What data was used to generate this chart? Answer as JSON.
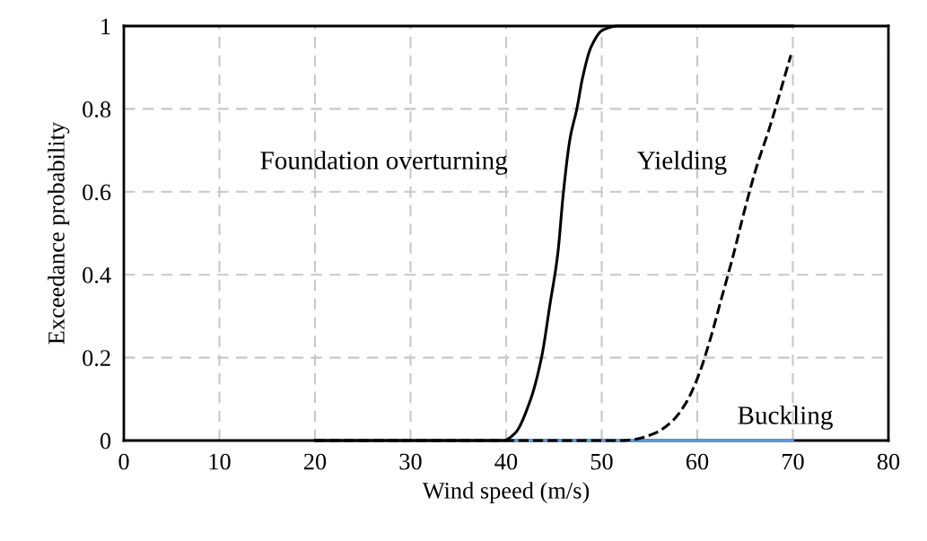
{
  "chart_data": {
    "type": "line",
    "xlabel": "Wind speed (m/s)",
    "ylabel": "Exceedance probability",
    "xlim": [
      0,
      80
    ],
    "xticks": [
      0,
      10,
      20,
      30,
      40,
      50,
      60,
      70,
      80
    ],
    "ylim": [
      0,
      1
    ],
    "yticks": [
      0,
      0.2,
      0.4,
      0.6,
      0.8,
      1
    ],
    "grid": true,
    "legend": false,
    "marker": "none",
    "series": [
      {
        "name": "Buckling",
        "color": "#5b9bd5",
        "line_style": "solid",
        "x": [
          40,
          70
        ],
        "values": [
          0,
          0
        ]
      },
      {
        "name": "Foundation overturning",
        "color": "#000000",
        "line_style": "solid",
        "x": [
          20,
          39.7,
          40.9,
          42.5,
          43.7,
          44.6,
          45.4,
          46.0,
          46.7,
          47.4,
          48.0,
          48.9,
          50.1,
          51.7,
          53,
          70
        ],
        "values": [
          0,
          0,
          0.017,
          0.095,
          0.2,
          0.33,
          0.45,
          0.6,
          0.73,
          0.8,
          0.875,
          0.95,
          0.99,
          1.0,
          1.0,
          1.0
        ]
      },
      {
        "name": "Yielding",
        "color": "#000000",
        "line_style": "dashed",
        "x": [
          20,
          52,
          53.2,
          55.5,
          57.3,
          58.8,
          60.1,
          61.3,
          62.5,
          63.8,
          65.0,
          66.2,
          67.5,
          69.8
        ],
        "values": [
          0,
          0,
          0.002,
          0.017,
          0.045,
          0.09,
          0.155,
          0.24,
          0.34,
          0.45,
          0.56,
          0.66,
          0.75,
          0.93
        ]
      }
    ]
  }
}
